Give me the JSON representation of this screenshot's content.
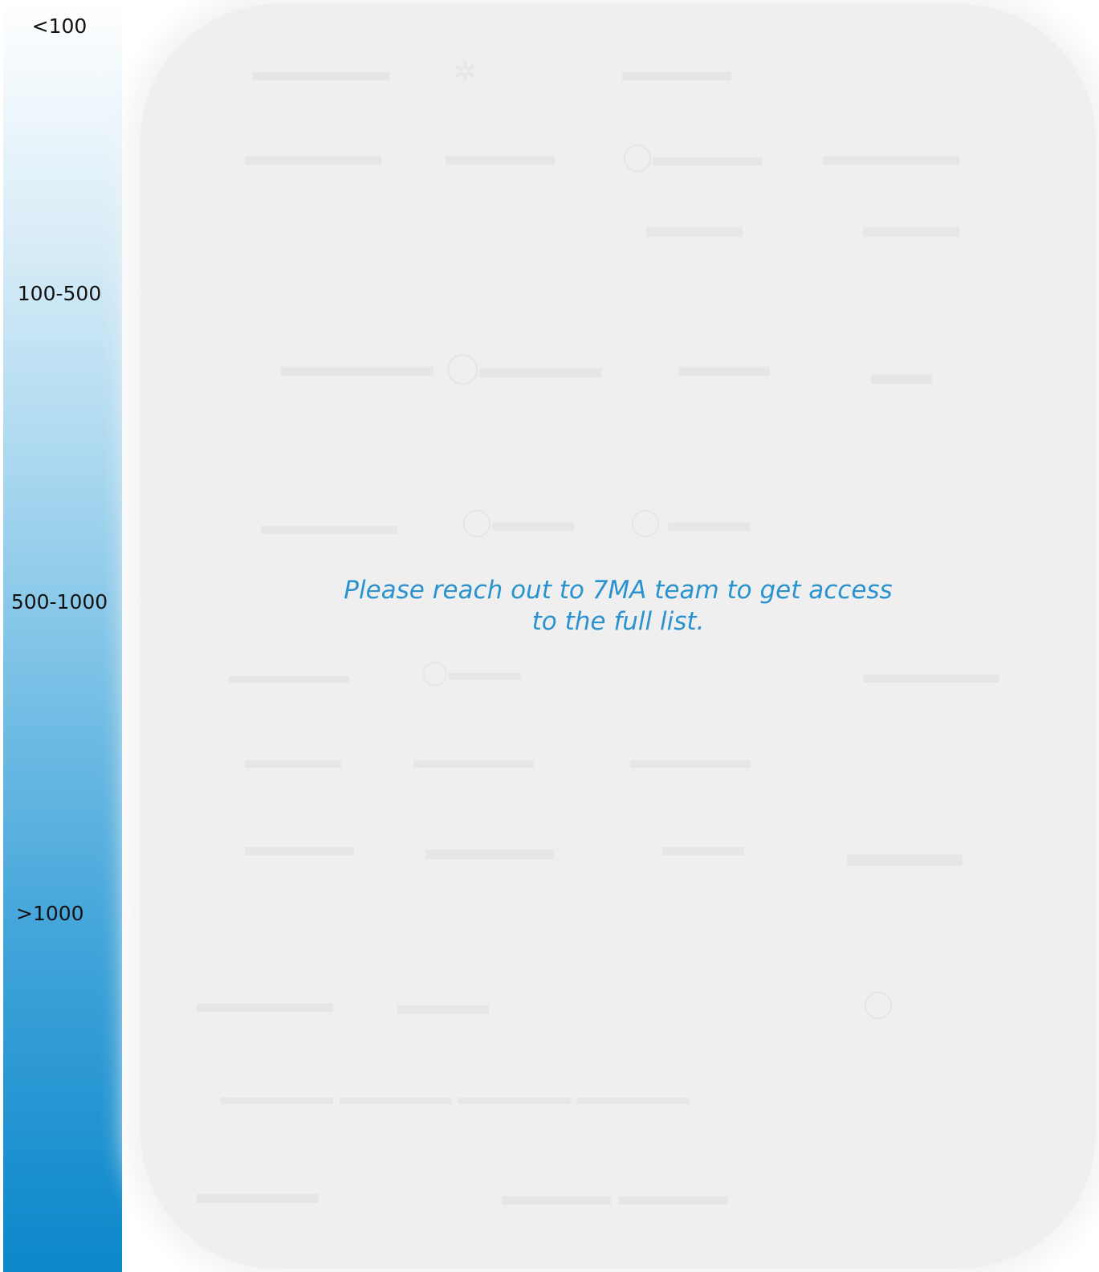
{
  "scale": {
    "color_top": "#ffffff",
    "color_bottom": "#0b87ca",
    "labels": [
      "<100",
      "100-500",
      "500-1000",
      ">1000"
    ]
  },
  "panel": {
    "background": "#efefef",
    "message_line1": "Please reach out to 7MA team to get access",
    "message_line2": "to the full list.",
    "message_color": "#2a93cf"
  }
}
